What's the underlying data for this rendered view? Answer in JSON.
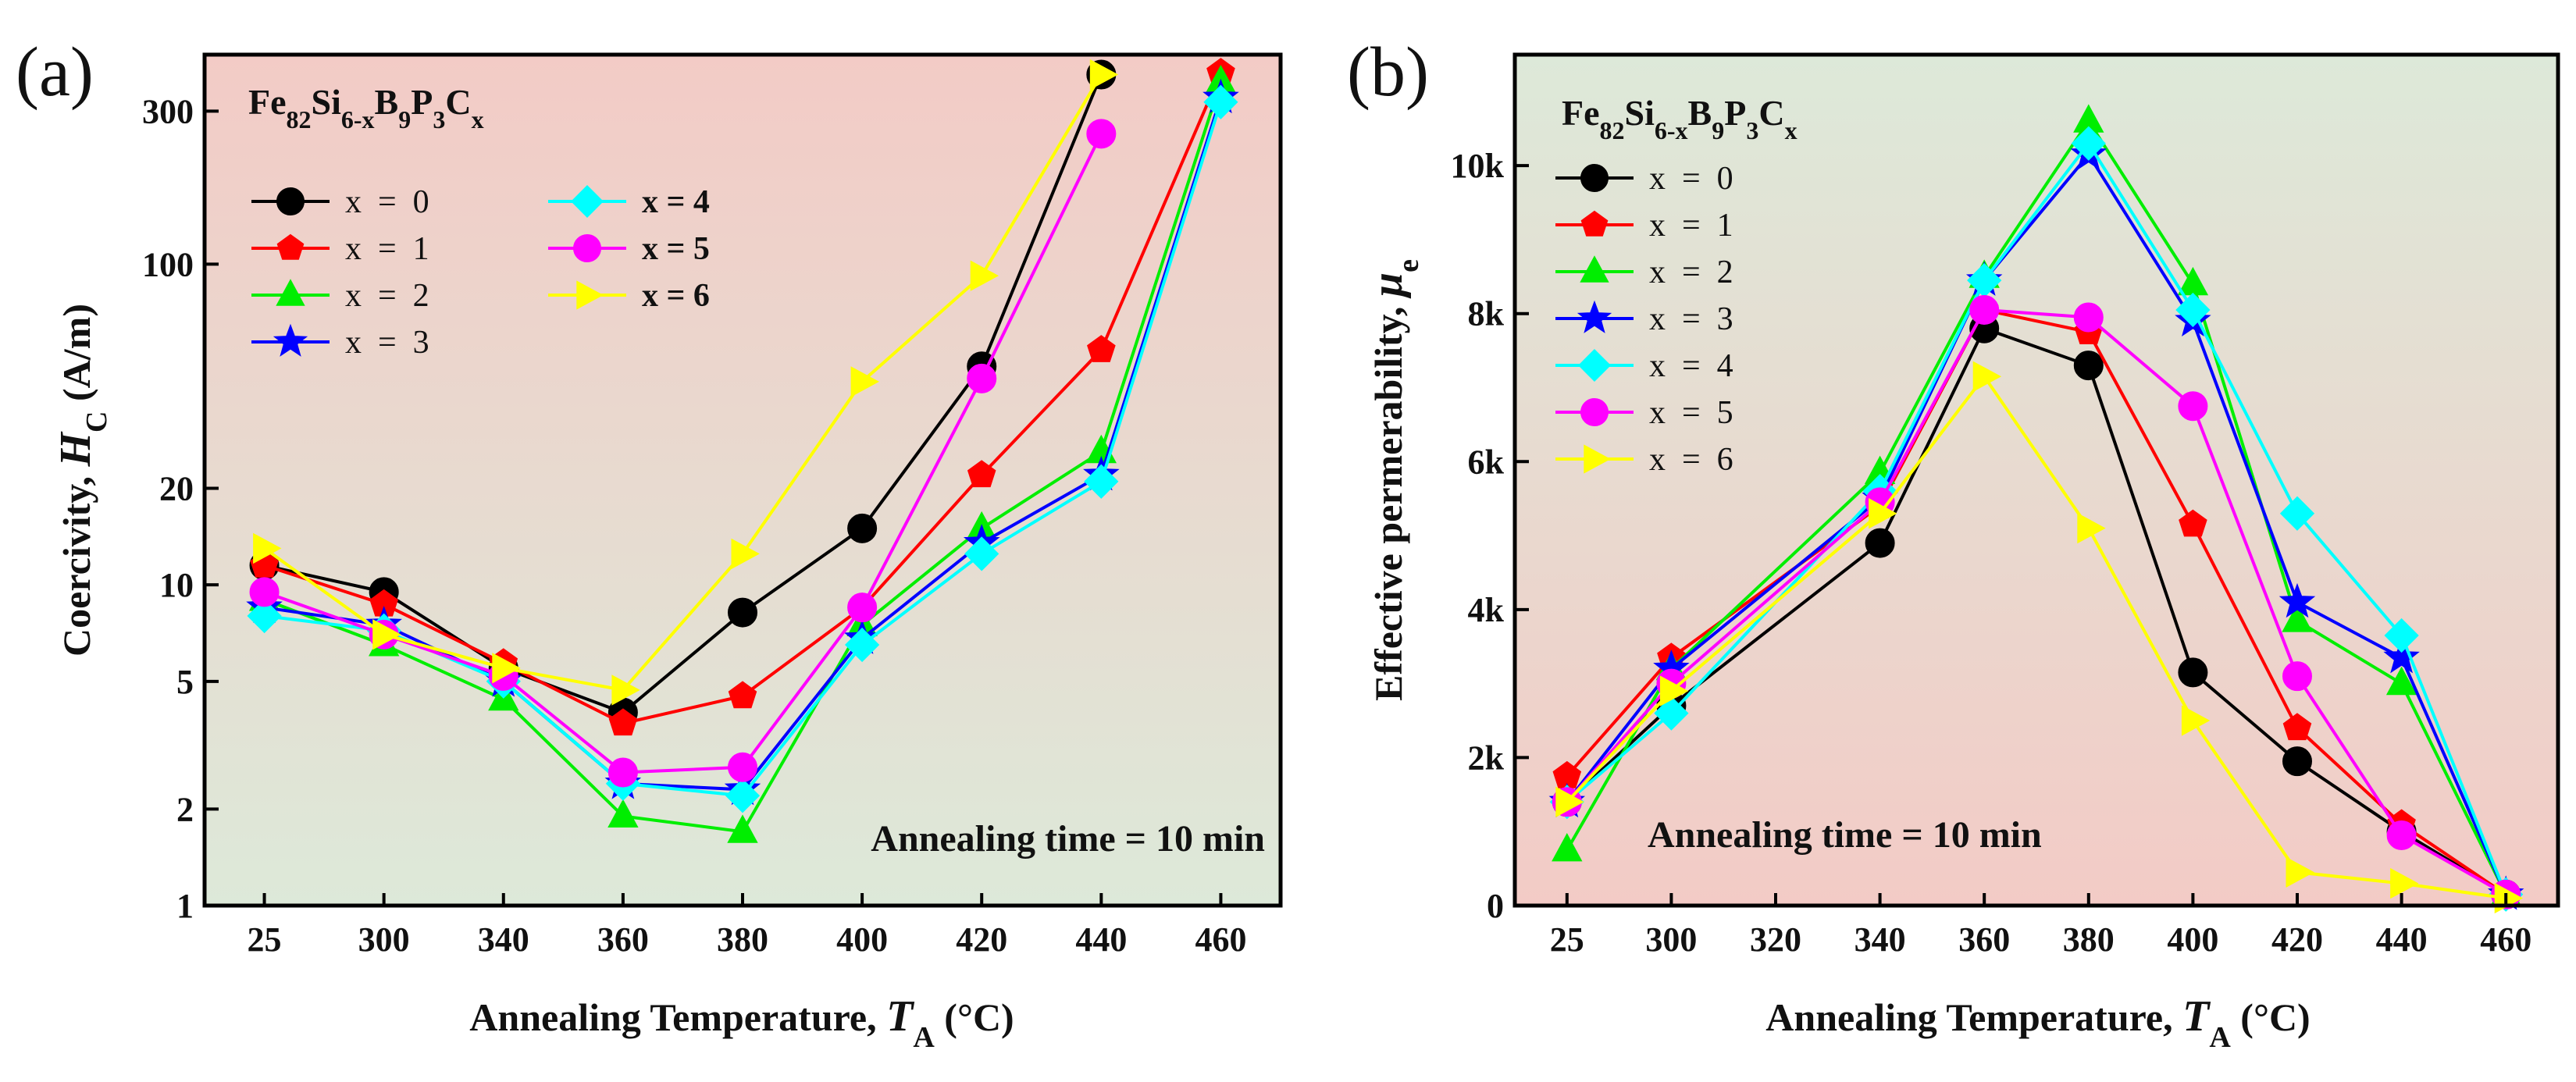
{
  "chart_data": [
    {
      "type": "line",
      "panel_label": "(a)",
      "formula": {
        "base": "Fe",
        "s1": "82",
        "e2": "Si",
        "s2": "6-x",
        "e3": "B",
        "s3": "9",
        "e4": "P",
        "s4": "3",
        "e5": "C",
        "s5": "x"
      },
      "xlabel": {
        "pre": "Annealing Temperature, ",
        "sym": "T",
        "sub": "A",
        "post": " (°C)"
      },
      "ylabel": {
        "pre": "Coercivity, ",
        "sym": "H",
        "sub": "C",
        "post": " (A/m)"
      },
      "yscale": "log",
      "ylim": [
        1,
        450
      ],
      "categories": [
        "25",
        "300",
        "340",
        "360",
        "380",
        "400",
        "420",
        "440",
        "460"
      ],
      "yticks": [
        1,
        2,
        5,
        10,
        20,
        100,
        300
      ],
      "ytick_labels": [
        "1",
        "2",
        "5",
        "10",
        "20",
        "100",
        "300"
      ],
      "annotation": "Annealing time = 10 min",
      "series": [
        {
          "name": "x  =  0",
          "color": "#000000",
          "marker": "circle",
          "values": [
            11.5,
            9.5,
            5.5,
            4.0,
            8.2,
            15.0,
            48.0,
            390.0,
            null
          ]
        },
        {
          "name": "x  =  1",
          "color": "#ff0000",
          "marker": "pentagon",
          "values": [
            11.5,
            8.7,
            5.7,
            3.7,
            4.5,
            8.5,
            22.0,
            54.0,
            395.0
          ]
        },
        {
          "name": "x  =  2",
          "color": "#00ee00",
          "marker": "triangle",
          "values": [
            9.0,
            6.5,
            4.4,
            1.9,
            1.7,
            7.5,
            15.0,
            26.0,
            370.0
          ]
        },
        {
          "name": "x  =  3",
          "color": "#0000ff",
          "marker": "star",
          "values": [
            8.5,
            7.5,
            5.0,
            2.4,
            2.3,
            6.8,
            13.5,
            22.0,
            330.0
          ]
        },
        {
          "name": "x = 4",
          "color": "#00ffff",
          "marker": "diamond",
          "values": [
            8.0,
            7.2,
            5.0,
            2.4,
            2.2,
            6.5,
            12.5,
            21.0,
            320.0
          ]
        },
        {
          "name": "x = 5",
          "color": "#ff00ff",
          "marker": "circle",
          "values": [
            9.5,
            7.0,
            5.2,
            2.6,
            2.7,
            8.5,
            44.0,
            255.0,
            null
          ]
        },
        {
          "name": "x = 6",
          "color": "#ffff00",
          "marker": "triright",
          "values": [
            13.0,
            7.0,
            5.5,
            4.7,
            12.5,
            43.0,
            92.0,
            390.0,
            null
          ]
        }
      ]
    },
    {
      "type": "line",
      "panel_label": "(b)",
      "formula": {
        "base": "Fe",
        "s1": "82",
        "e2": "Si",
        "s2": "6-x",
        "e3": "B",
        "s3": "9",
        "e4": "P",
        "s4": "3",
        "e5": "C",
        "s5": "x"
      },
      "xlabel": {
        "pre": "Annealing Temperature, ",
        "sym": "T",
        "sub": "A",
        "post": " (°C)"
      },
      "ylabel": {
        "pre": "Effective permerability, ",
        "sym": "μ",
        "sub": "e",
        "post": ""
      },
      "yscale": "linear",
      "ylim": [
        0,
        11500
      ],
      "categories": [
        "25",
        "300",
        "320",
        "340",
        "360",
        "380",
        "400",
        "420",
        "440",
        "460"
      ],
      "yticks": [
        0,
        2000,
        4000,
        6000,
        8000,
        10000
      ],
      "ytick_labels": [
        "0",
        "2k",
        "4k",
        "6k",
        "8k",
        "10k"
      ],
      "annotation": "Annealing time = 10 min",
      "series": [
        {
          "name": "x  =  0",
          "color": "#000000",
          "marker": "circle",
          "values": [
            1400,
            2700,
            null,
            4900,
            7800,
            7300,
            3150,
            1950,
            1000,
            150
          ]
        },
        {
          "name": "x  =  1",
          "color": "#ff0000",
          "marker": "pentagon",
          "values": [
            1750,
            3350,
            null,
            5400,
            8050,
            7750,
            5150,
            2400,
            1100,
            150
          ]
        },
        {
          "name": "x  =  2",
          "color": "#00ee00",
          "marker": "triangle",
          "values": [
            750,
            3200,
            null,
            5850,
            8500,
            10600,
            8400,
            3850,
            3000,
            150
          ]
        },
        {
          "name": "x  =  3",
          "color": "#0000ff",
          "marker": "star",
          "values": [
            1400,
            3200,
            null,
            5500,
            8450,
            10150,
            7900,
            4100,
            3350,
            150
          ]
        },
        {
          "name": "x  =  4",
          "color": "#00ffff",
          "marker": "diamond",
          "values": [
            1400,
            2600,
            null,
            5600,
            8450,
            10300,
            8050,
            5300,
            3650,
            150
          ]
        },
        {
          "name": "x  =  5",
          "color": "#ff00ff",
          "marker": "circle",
          "values": [
            1400,
            3000,
            null,
            5450,
            8050,
            7950,
            6750,
            3100,
            950,
            150
          ]
        },
        {
          "name": "x  =  6",
          "color": "#ffff00",
          "marker": "triright",
          "values": [
            1400,
            2900,
            null,
            5300,
            7150,
            5100,
            2500,
            450,
            300,
            100
          ]
        }
      ]
    }
  ]
}
